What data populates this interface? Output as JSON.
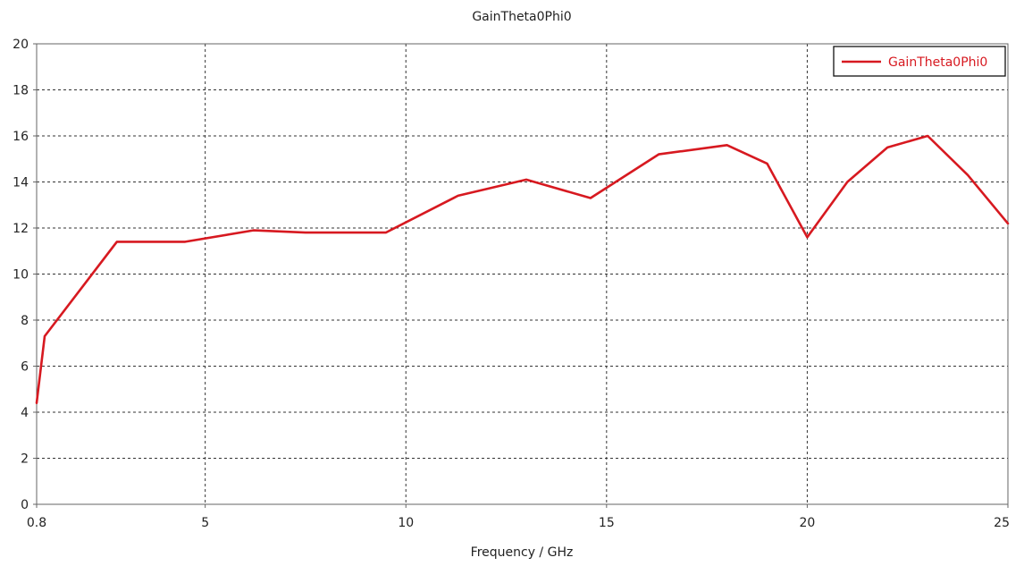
{
  "chart_data": {
    "type": "line",
    "title": "GainTheta0Phi0",
    "xlabel": "Frequency / GHz",
    "ylabel": "",
    "xlim": [
      0.8,
      25
    ],
    "ylim": [
      0,
      20
    ],
    "x_ticks": [
      0.8,
      5,
      10,
      15,
      20,
      25
    ],
    "x_tick_labels": [
      "0.8",
      "5",
      "10",
      "15",
      "20",
      "25"
    ],
    "y_ticks": [
      0,
      2,
      4,
      6,
      8,
      10,
      12,
      14,
      16,
      18,
      20
    ],
    "y_tick_labels": [
      "0",
      "2",
      "4",
      "6",
      "8",
      "10",
      "12",
      "14",
      "16",
      "18",
      "20"
    ],
    "grid": true,
    "legend_position": "top-right",
    "series": [
      {
        "name": "GainTheta0Phi0",
        "color": "#d71920",
        "x": [
          0.8,
          1.0,
          2.8,
          4.5,
          6.2,
          7.5,
          9.5,
          11.3,
          13.0,
          14.6,
          16.3,
          18.0,
          19.0,
          20.0,
          21.0,
          22.0,
          23.0,
          24.0,
          25.0
        ],
        "y": [
          4.4,
          7.3,
          11.4,
          11.4,
          11.9,
          11.8,
          11.8,
          13.4,
          14.1,
          13.3,
          15.2,
          15.6,
          14.8,
          11.6,
          14.0,
          15.5,
          16.0,
          14.3,
          12.2
        ]
      }
    ]
  }
}
